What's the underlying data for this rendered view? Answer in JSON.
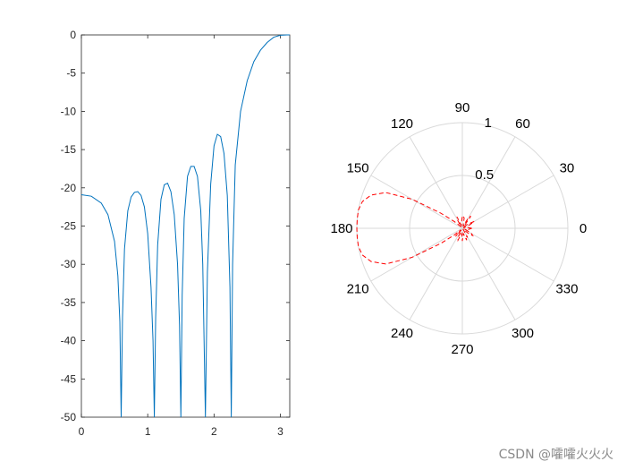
{
  "chart_data": [
    {
      "type": "line",
      "description_source": "left cartesian subplot",
      "x_ticks": [
        "0",
        "1",
        "2",
        "3"
      ],
      "y_ticks": [
        "0",
        "-5",
        "-10",
        "-15",
        "-20",
        "-25",
        "-30",
        "-35",
        "-40",
        "-45",
        "-50"
      ],
      "xlim": [
        0,
        3.14159
      ],
      "ylim": [
        -50,
        0
      ],
      "line_color": "#0072BD",
      "series": [
        {
          "x": [
            0,
            0.15,
            0.3,
            0.4,
            0.5,
            0.55,
            0.58,
            0.6,
            0.62,
            0.65,
            0.7,
            0.75,
            0.8,
            0.85,
            0.9,
            0.95,
            1.0,
            1.05,
            1.08,
            1.1,
            1.12,
            1.15,
            1.2,
            1.25,
            1.3,
            1.35,
            1.4,
            1.45,
            1.48,
            1.5,
            1.52,
            1.55,
            1.6,
            1.65,
            1.7,
            1.75,
            1.8,
            1.83,
            1.85,
            1.87,
            1.9,
            1.95,
            2.0,
            2.05,
            2.1,
            2.15,
            2.2,
            2.24,
            2.26,
            2.28,
            2.32,
            2.4,
            2.5,
            2.6,
            2.7,
            2.8,
            2.9,
            3.0,
            3.1,
            3.14159
          ],
          "y": [
            -20.9,
            -21.1,
            -22.0,
            -23.5,
            -27.0,
            -31.5,
            -37.5,
            -50,
            -37.0,
            -28.0,
            -23.0,
            -21.2,
            -20.6,
            -20.5,
            -21.0,
            -22.5,
            -26.0,
            -33.0,
            -40.0,
            -50,
            -37.0,
            -27.5,
            -21.5,
            -19.6,
            -19.4,
            -20.5,
            -23.5,
            -30.0,
            -38.0,
            -50,
            -34.0,
            -24.0,
            -18.5,
            -17.2,
            -17.2,
            -18.5,
            -23.0,
            -30.0,
            -40.0,
            -50,
            -31.0,
            -19.5,
            -14.5,
            -13.0,
            -13.3,
            -15.5,
            -21.0,
            -33.0,
            -50,
            -30.0,
            -17.0,
            -10.0,
            -6.0,
            -3.5,
            -2.0,
            -1.0,
            -0.3,
            -0.05,
            0.0,
            0.0
          ]
        }
      ]
    },
    {
      "type": "polar",
      "description_source": "right polar subplot",
      "theta_labels": [
        "0",
        "30",
        "60",
        "90",
        "120",
        "150",
        "180",
        "210",
        "240",
        "270",
        "300",
        "330"
      ],
      "radial_labels": [
        "0.5",
        "1"
      ],
      "rlim": [
        0,
        1
      ],
      "line_color": "#FF0000",
      "line_style": "dashed",
      "series": [
        {
          "theta_deg": [
            0,
            10,
            20,
            25,
            30,
            40,
            50,
            55,
            60,
            70,
            80,
            90,
            100,
            110,
            115,
            120,
            130,
            140,
            145,
            150,
            155,
            160,
            165,
            170,
            175,
            180,
            185,
            190,
            195,
            200,
            205,
            210,
            215,
            220,
            225,
            230,
            240,
            245,
            250,
            260,
            270,
            280,
            290,
            295,
            300,
            310,
            320,
            325,
            330,
            340,
            350,
            360
          ],
          "r": [
            0.09,
            0.05,
            0.01,
            0.08,
            0.13,
            0.05,
            0.02,
            0.14,
            0.12,
            0.02,
            0.1,
            0.12,
            0.05,
            0.03,
            0.12,
            0.1,
            0.02,
            0.1,
            0.25,
            0.55,
            0.8,
            0.92,
            0.98,
            1.0,
            1.0,
            1.0,
            1.0,
            1.0,
            0.98,
            0.92,
            0.8,
            0.55,
            0.25,
            0.1,
            0.02,
            0.1,
            0.02,
            0.1,
            0.12,
            0.05,
            0.12,
            0.05,
            0.12,
            0.08,
            0.1,
            0.01,
            0.09,
            0.12,
            0.1,
            0.03,
            0.06,
            0.09
          ]
        }
      ]
    }
  ],
  "watermark": "CSDN @嚯嚯火火火"
}
